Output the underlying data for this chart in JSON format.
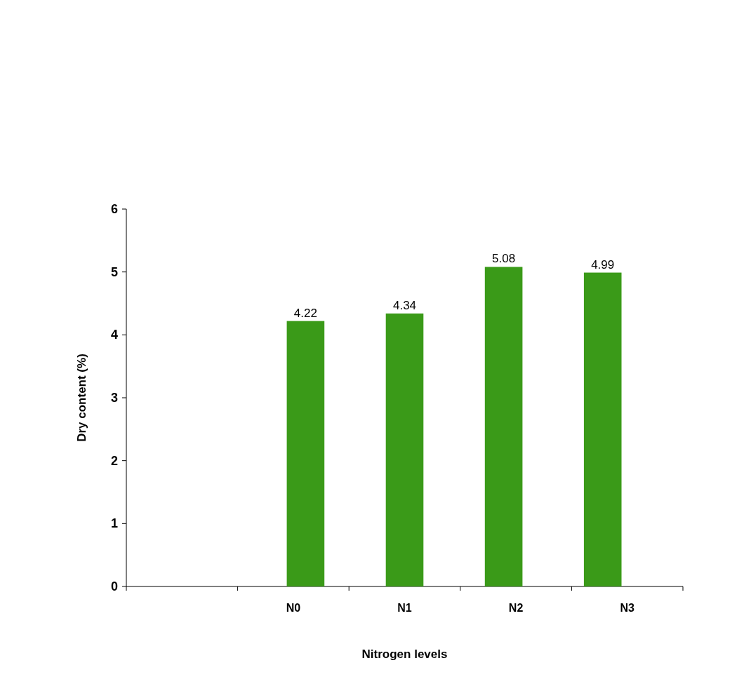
{
  "chart_data": {
    "type": "bar",
    "xlabel": "Nitrogen levels",
    "ylabel": "Dry content (%)",
    "categories": [
      null,
      "N0",
      "N1",
      "N2",
      "N3"
    ],
    "values": [
      null,
      4.22,
      4.34,
      5.08,
      4.99
    ],
    "color": "#3a9a18",
    "ylim": [
      0,
      6
    ],
    "yticks": [
      0,
      1,
      2,
      3,
      4,
      5,
      6
    ],
    "data_labels": true
  }
}
